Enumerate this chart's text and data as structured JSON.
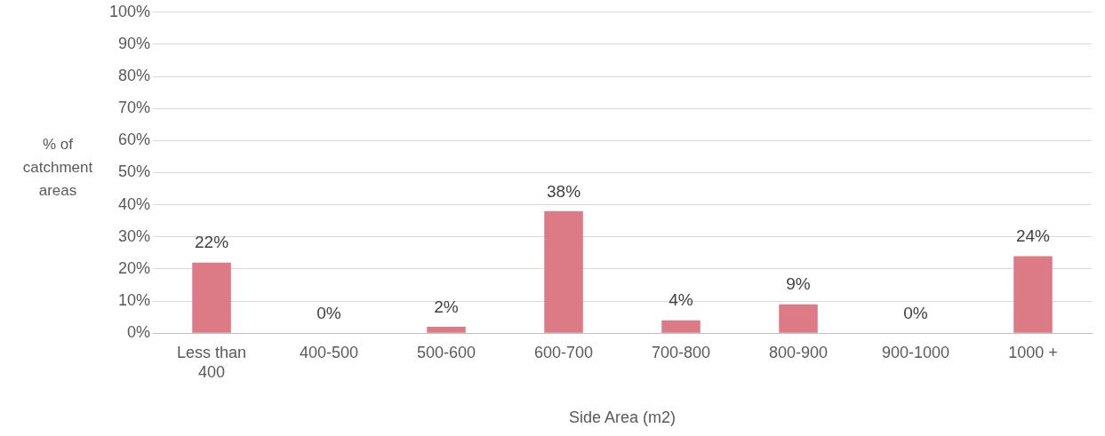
{
  "chart_data": {
    "type": "bar",
    "xlabel": "Side Area (m2)",
    "ylabel": "% of catchment areas",
    "categories": [
      "Less than 400",
      "400-500",
      "500-600",
      "600-700",
      "700-800",
      "800-900",
      "900-1000",
      "1000 +"
    ],
    "values": [
      22,
      0,
      2,
      38,
      4,
      9,
      0,
      24
    ],
    "value_labels": [
      "22%",
      "0%",
      "2%",
      "38%",
      "4%",
      "9%",
      "0%",
      "24%"
    ],
    "color": "#dc7a86",
    "ylim": [
      0,
      100
    ],
    "yticks": [
      {
        "value": 0,
        "label": "0%"
      },
      {
        "value": 10,
        "label": "10%"
      },
      {
        "value": 20,
        "label": "20%"
      },
      {
        "value": 30,
        "label": "30%"
      },
      {
        "value": 40,
        "label": "40%"
      },
      {
        "value": 50,
        "label": "50%"
      },
      {
        "value": 60,
        "label": "60%"
      },
      {
        "value": 70,
        "label": "70%"
      },
      {
        "value": 80,
        "label": "80%"
      },
      {
        "value": 90,
        "label": "90%"
      },
      {
        "value": 100,
        "label": "100%"
      }
    ],
    "grid": "y",
    "legend": false
  }
}
